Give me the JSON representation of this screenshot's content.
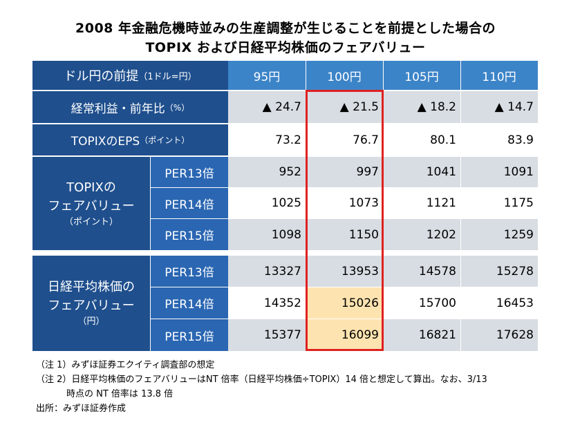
{
  "title": {
    "line1": "2008 年金融危機時並みの生産調整が生じることを前提とした場合の",
    "line2": "TOPIX および日経平均株価のフェアバリュー"
  },
  "header": {
    "label": "ドル円の前提",
    "label_suffix": "（1ドル=円）",
    "columns": [
      "95円",
      "100円",
      "105円",
      "110円"
    ]
  },
  "rows": {
    "profit": {
      "label": "経常利益・前年比",
      "suffix": "（%）",
      "values": [
        "▲ 24.7",
        "▲ 21.5",
        "▲ 18.2",
        "▲ 14.7"
      ]
    },
    "eps": {
      "label": "TOPIXのEPS",
      "suffix": "（ポイント）",
      "values": [
        "73.2",
        "76.7",
        "80.1",
        "83.9"
      ]
    }
  },
  "topix_group": {
    "line1": "TOPIXの",
    "line2": "フェアバリュー",
    "line3": "（ポイント）",
    "rows": [
      {
        "per": "PER13倍",
        "values": [
          "952",
          "997",
          "1041",
          "1091"
        ]
      },
      {
        "per": "PER14倍",
        "values": [
          "1025",
          "1073",
          "1121",
          "1175"
        ]
      },
      {
        "per": "PER15倍",
        "values": [
          "1098",
          "1150",
          "1202",
          "1259"
        ]
      }
    ]
  },
  "nikkei_group": {
    "line1": "日経平均株価の",
    "line2": "フェアバリュー",
    "line3": "（円）",
    "rows": [
      {
        "per": "PER13倍",
        "values": [
          "13327",
          "13953",
          "14578",
          "15278"
        ]
      },
      {
        "per": "PER14倍",
        "values": [
          "14352",
          "15026",
          "15700",
          "16453"
        ]
      },
      {
        "per": "PER15倍",
        "values": [
          "15377",
          "16099",
          "16821",
          "17628"
        ]
      }
    ]
  },
  "notes": {
    "n1": "（注 1）みずほ証券エクイティ調査部の想定",
    "n2": "（注 2）日経平均株価のフェアバリューはNT 倍率（日経平均株価÷TOPIX）14 倍と想定して算出。なお、3/13",
    "n2b": "時点の NT 倍率は 13.8 倍",
    "source": "出所：みずほ証券作成"
  },
  "colors": {
    "dark": "#1f4f8d",
    "mid": "#2a66b2",
    "header": "#3c84c8",
    "band": "#d8dde3",
    "highlight": "#fde3b0",
    "redbox": "#e02020"
  }
}
